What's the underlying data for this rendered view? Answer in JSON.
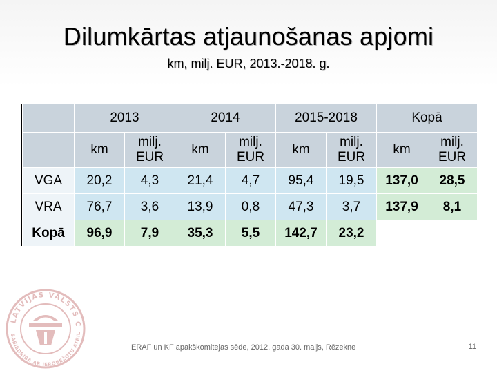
{
  "slide": {
    "title": "Dilumkārtas atjaunošanas apjomi",
    "subtitle": "km, milj. EUR, 2013.-2018. g.",
    "footer": "ERAF un KF apakškomitejas sēde, 2012. gada 30. maijs, Rēzekne",
    "page_number": "11"
  },
  "table": {
    "period_headers": [
      "2013",
      "2014",
      "2015-2018",
      "Kopā"
    ],
    "unit_headers": [
      "km",
      "milj. EUR",
      "km",
      "milj. EUR",
      "km",
      "milj. EUR",
      "km",
      "milj. EUR"
    ],
    "rows": [
      {
        "label": "VGA",
        "values": [
          "20,2",
          "4,3",
          "21,4",
          "4,7",
          "95,4",
          "19,5",
          "137,0",
          "28,5"
        ]
      },
      {
        "label": "VRA",
        "values": [
          "76,7",
          "3,6",
          "13,9",
          "0,8",
          "47,3",
          "3,7",
          "137,9",
          "8,1"
        ]
      },
      {
        "label": "Kopā",
        "values": [
          "96,9",
          "7,9",
          "35,3",
          "5,5",
          "142,7",
          "23,2",
          "",
          ""
        ]
      }
    ]
  },
  "logo": {
    "icon": "latvijas-valsts-celi-seal-icon",
    "text_top": "LATVIJAS VALSTS CEĻI",
    "text_bottom": "SABIEDRĪBA AR IEROBEŽOTU ATBILDĪBU"
  },
  "colors": {
    "header": "#c9d3dc",
    "row_label": "#eef4f8",
    "cell": "#cfe6f1",
    "total_column": "#d3ecd6"
  }
}
